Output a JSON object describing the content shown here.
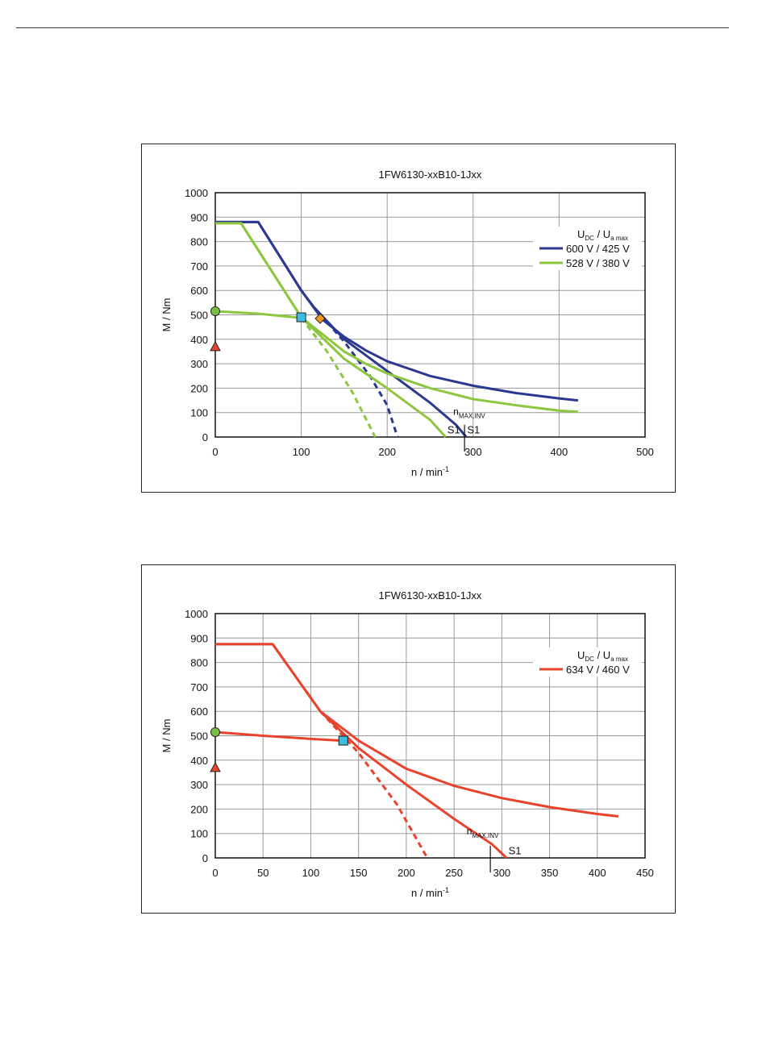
{
  "chart_data": [
    {
      "type": "line",
      "title": "1FW6130-xxB10-1Jxx",
      "xlabel_base": "n / min",
      "xlabel_exp": "-1",
      "ylabel": "M / Nm",
      "xlim": [
        0,
        500
      ],
      "ylim": [
        0,
        1000
      ],
      "xticks": [
        0,
        100,
        200,
        300,
        400,
        500
      ],
      "yticks": [
        0,
        100,
        200,
        300,
        400,
        500,
        600,
        700,
        800,
        900,
        1000
      ],
      "grid": true,
      "legend_position": "right",
      "legend_header": {
        "a": "U",
        "a_sub": "DC",
        "sep": " / ",
        "b": "U",
        "b_sub": "a max"
      },
      "colors": {
        "blue": "#2b3990",
        "green": "#8dc63f",
        "cyan": "#3bbfe0",
        "orange": "#f7941d",
        "point_green": "#7ac143",
        "point_red": "#e8432d"
      },
      "series": [
        {
          "name": "600 V / 425 V",
          "color": "#2b3990",
          "curves": [
            {
              "dashed": false,
              "points": [
                [
                  0,
                  880
                ],
                [
                  50,
                  880
                ],
                [
                  100,
                  600
                ],
                [
                  125,
                  480
                ],
                [
                  150,
                  410
                ],
                [
                  175,
                  355
                ],
                [
                  200,
                  310
                ],
                [
                  250,
                  250
                ],
                [
                  300,
                  210
                ],
                [
                  350,
                  180
                ],
                [
                  400,
                  158
                ],
                [
                  422,
                  150
                ]
              ]
            },
            {
              "dashed": false,
              "points": [
                [
                  0,
                  880
                ],
                [
                  50,
                  880
                ],
                [
                  100,
                  600
                ],
                [
                  115,
                  530
                ],
                [
                  150,
                  400
                ],
                [
                  200,
                  270
                ],
                [
                  250,
                  140
                ],
                [
                  280,
                  50
                ],
                [
                  292,
                  0
                ]
              ]
            },
            {
              "dashed": true,
              "points": [
                [
                  115,
                  530
                ],
                [
                  150,
                  390
                ],
                [
                  180,
                  250
                ],
                [
                  200,
                  130
                ],
                [
                  212,
                  0
                ]
              ]
            }
          ]
        },
        {
          "name": "528 V / 380 V",
          "color": "#8dc63f",
          "curves": [
            {
              "dashed": false,
              "points": [
                [
                  0,
                  875
                ],
                [
                  30,
                  875
                ],
                [
                  100,
                  490
                ],
                [
                  150,
                  350
                ],
                [
                  175,
                  300
                ],
                [
                  200,
                  260
                ],
                [
                  250,
                  200
                ],
                [
                  300,
                  155
                ],
                [
                  350,
                  130
                ],
                [
                  400,
                  108
                ],
                [
                  422,
                  103
                ]
              ]
            },
            {
              "dashed": false,
              "points": [
                [
                  0,
                  875
                ],
                [
                  30,
                  875
                ],
                [
                  100,
                  490
                ],
                [
                  150,
                  320
                ],
                [
                  200,
                  200
                ],
                [
                  250,
                  70
                ],
                [
                  268,
                  0
                ]
              ]
            },
            {
              "dashed": false,
              "points": [
                [
                  0,
                  515
                ],
                [
                  50,
                  505
                ],
                [
                  100,
                  487
                ]
              ]
            },
            {
              "dashed": true,
              "points": [
                [
                  100,
                  487
                ],
                [
                  130,
                  350
                ],
                [
                  160,
                  180
                ],
                [
                  186,
                  0
                ]
              ]
            }
          ]
        }
      ],
      "markers": [
        {
          "shape": "circle",
          "x": 0,
          "y": 515,
          "color": "#7ac143"
        },
        {
          "shape": "triangle",
          "x": 0,
          "y": 370,
          "color": "#e8432d"
        },
        {
          "shape": "square",
          "x": 100,
          "y": 490,
          "color": "#3bbfe0"
        },
        {
          "shape": "diamond",
          "x": 122,
          "y": 485,
          "color": "#f7941d"
        }
      ],
      "annotations": [
        {
          "kind": "nmax",
          "base": "n",
          "sub": "MAX,INV",
          "x": 290,
          "y": 90
        },
        {
          "kind": "text",
          "text": "S1",
          "x": 270,
          "y": 32
        },
        {
          "kind": "text",
          "text": "S1",
          "x": 293,
          "y": 32
        }
      ],
      "vline_x": 290
    },
    {
      "type": "line",
      "title": "1FW6130-xxB10-1Jxx",
      "xlabel_base": "n / min",
      "xlabel_exp": "-1",
      "ylabel": "M / Nm",
      "xlim": [
        0,
        450
      ],
      "ylim": [
        0,
        1000
      ],
      "xticks": [
        0,
        50,
        100,
        150,
        200,
        250,
        300,
        350,
        400,
        450
      ],
      "yticks": [
        0,
        100,
        200,
        300,
        400,
        500,
        600,
        700,
        800,
        900,
        1000
      ],
      "grid": true,
      "legend_position": "right",
      "legend_header": {
        "a": "U",
        "a_sub": "DC",
        "sep": " / ",
        "b": "U",
        "b_sub": "a max"
      },
      "colors": {
        "red": "#e8432d",
        "cyan": "#3bbfe0",
        "point_green": "#7ac143",
        "point_red": "#e8432d"
      },
      "series": [
        {
          "name": "634 V / 460 V",
          "color": "#e8432d",
          "curves": [
            {
              "dashed": false,
              "points": [
                [
                  0,
                  875
                ],
                [
                  60,
                  875
                ],
                [
                  110,
                  600
                ],
                [
                  150,
                  480
                ],
                [
                  200,
                  365
                ],
                [
                  250,
                  295
                ],
                [
                  300,
                  245
                ],
                [
                  350,
                  208
                ],
                [
                  400,
                  180
                ],
                [
                  422,
                  170
                ]
              ]
            },
            {
              "dashed": false,
              "points": [
                [
                  0,
                  875
                ],
                [
                  60,
                  875
                ],
                [
                  110,
                  600
                ],
                [
                  150,
                  450
                ],
                [
                  200,
                  300
                ],
                [
                  250,
                  160
                ],
                [
                  290,
                  55
                ],
                [
                  305,
                  0
                ]
              ]
            },
            {
              "dashed": false,
              "points": [
                [
                  0,
                  515
                ],
                [
                  50,
                  500
                ],
                [
                  100,
                  487
                ],
                [
                  133,
                  480
                ]
              ]
            },
            {
              "dashed": true,
              "points": [
                [
                  110,
                  600
                ],
                [
                  150,
                  430
                ],
                [
                  190,
                  220
                ],
                [
                  222,
                  0
                ]
              ]
            }
          ]
        }
      ],
      "markers": [
        {
          "shape": "circle",
          "x": 0,
          "y": 515,
          "color": "#7ac143"
        },
        {
          "shape": "triangle",
          "x": 0,
          "y": 370,
          "color": "#e8432d"
        },
        {
          "shape": "square",
          "x": 134,
          "y": 480,
          "color": "#3bbfe0"
        }
      ],
      "annotations": [
        {
          "kind": "nmax",
          "base": "n",
          "sub": "MAX,INV",
          "x": 275,
          "y": 95
        },
        {
          "kind": "text",
          "text": "S1",
          "x": 307,
          "y": 32
        }
      ],
      "vline_x": 288
    }
  ]
}
